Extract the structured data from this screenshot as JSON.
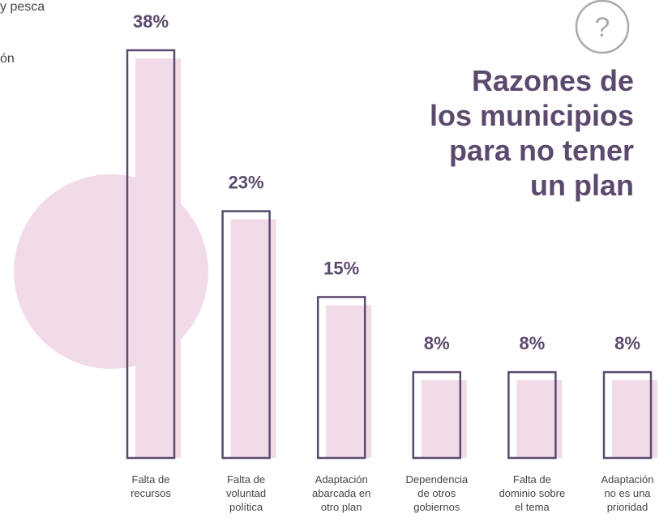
{
  "chart_data": {
    "type": "bar",
    "title": "Razones de\nlos municipios\npara no tener\nun plan",
    "icon_text": "?",
    "fragments": [
      "y pesca",
      "ón"
    ],
    "categories": [
      "Falta de\nrecursos",
      "Falta de\nvoluntad\npolítica",
      "Adaptación\nabarcada en\notro plan",
      "Dependencia\nde otros\ngobiernos",
      "Falta de\ndominio sobre\nel tema",
      "Adaptación\nno es una\nprioridad"
    ],
    "values": [
      38,
      23,
      15,
      8,
      8,
      8
    ],
    "value_labels": [
      "38%",
      "23%",
      "15%",
      "8%",
      "8%",
      "8%"
    ],
    "ylim": [
      0,
      38
    ],
    "color": "#f2dbe8",
    "outline_color": "#5b4a6e"
  }
}
